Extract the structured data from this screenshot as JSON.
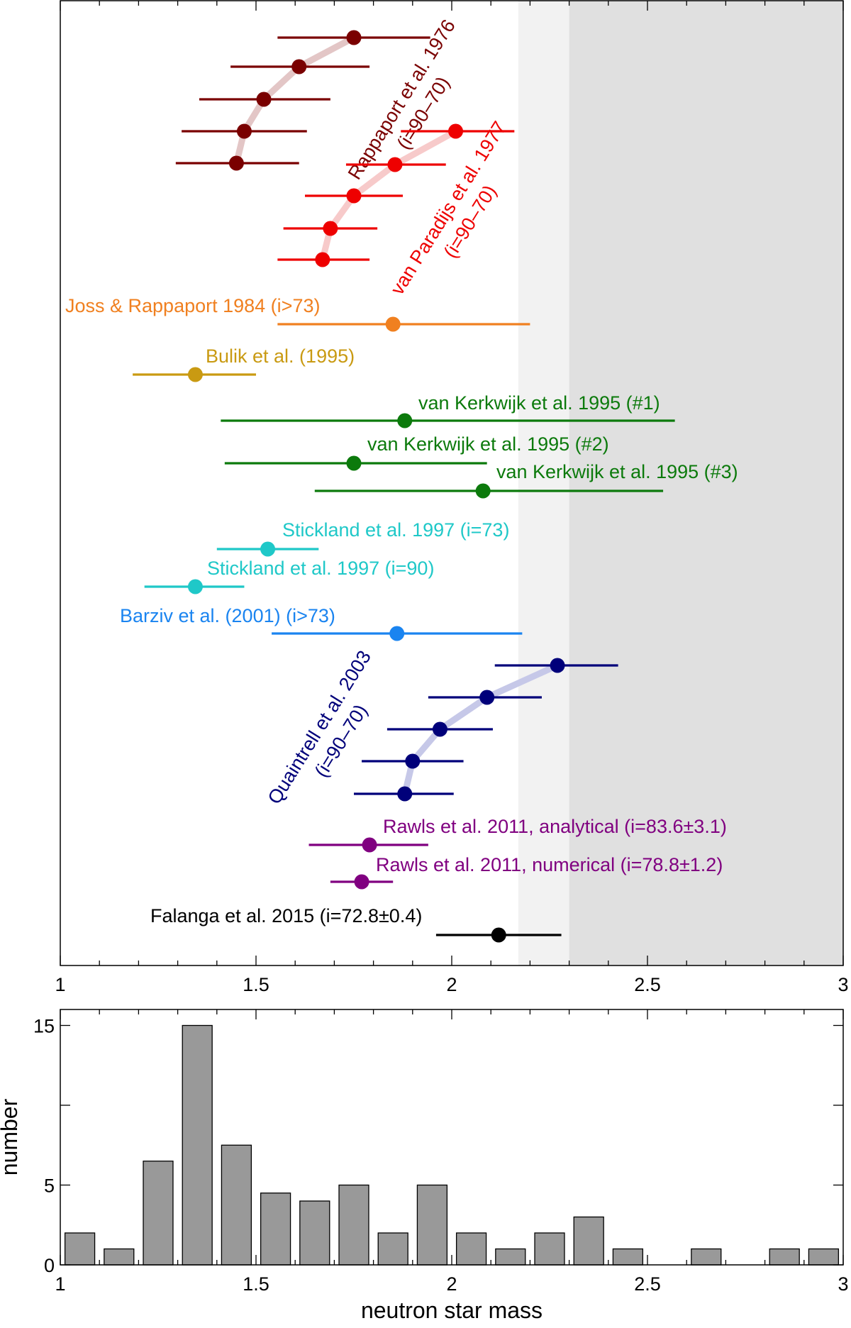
{
  "chart_data": [
    {
      "type": "scatter",
      "subtype": "error-bar",
      "title": "",
      "xlabel": "",
      "ylabel": "",
      "xlim": [
        1,
        3
      ],
      "xticks": [
        1,
        1.5,
        2,
        2.5,
        3
      ],
      "xtick_labels": [
        "1",
        "1.5",
        "2",
        "2.5",
        "3"
      ],
      "shaded_regions": [
        {
          "from": 2.17,
          "to": 2.3,
          "color": "#f2f2f2"
        },
        {
          "from": 2.3,
          "to": 3.0,
          "color": "#e0e0e0"
        }
      ],
      "groups": [
        {
          "label": "Rappaport et al. 1976\n(i=90–70)",
          "color": "#7a0000",
          "trend_color": "#e3c6c6",
          "points": [
            {
              "x": 1.75,
              "lo": 1.555,
              "hi": 1.945
            },
            {
              "x": 1.61,
              "lo": 1.435,
              "hi": 1.79
            },
            {
              "x": 1.52,
              "lo": 1.355,
              "hi": 1.69
            },
            {
              "x": 1.47,
              "lo": 1.31,
              "hi": 1.63
            },
            {
              "x": 1.45,
              "lo": 1.295,
              "hi": 1.61
            }
          ]
        },
        {
          "label": "van Paradijs et al. 1977\n(i=90–70)",
          "color": "#ee0000",
          "trend_color": "#f7caca",
          "points": [
            {
              "x": 2.01,
              "lo": 1.87,
              "hi": 2.16
            },
            {
              "x": 1.855,
              "lo": 1.73,
              "hi": 1.985
            },
            {
              "x": 1.75,
              "lo": 1.625,
              "hi": 1.875
            },
            {
              "x": 1.69,
              "lo": 1.57,
              "hi": 1.81
            },
            {
              "x": 1.67,
              "lo": 1.555,
              "hi": 1.79
            }
          ]
        },
        {
          "label": "Joss & Rappaport 1984 (i>73)",
          "color": "#f08020",
          "points": [
            {
              "x": 1.85,
              "lo": 1.555,
              "hi": 2.2
            }
          ]
        },
        {
          "label": "Bulik et al. (1995)",
          "color": "#c99a12",
          "points": [
            {
              "x": 1.345,
              "lo": 1.185,
              "hi": 1.5
            }
          ]
        },
        {
          "label": "van Kerkwijk et al. 1995 (#1)",
          "color": "#0c7a0c",
          "points": [
            {
              "x": 1.88,
              "lo": 1.41,
              "hi": 2.57
            }
          ]
        },
        {
          "label": "van Kerkwijk et al. 1995 (#2)",
          "color": "#0c7a0c",
          "points": [
            {
              "x": 1.75,
              "lo": 1.42,
              "hi": 2.09
            }
          ]
        },
        {
          "label": "van Kerkwijk et al. 1995 (#3)",
          "color": "#0c7a0c",
          "points": [
            {
              "x": 2.08,
              "lo": 1.65,
              "hi": 2.54
            }
          ]
        },
        {
          "label": "Stickland et al. 1997 (i=73)",
          "color": "#1fc8c8",
          "points": [
            {
              "x": 1.53,
              "lo": 1.4,
              "hi": 1.66
            }
          ]
        },
        {
          "label": "Stickland et al. 1997 (i=90)",
          "color": "#1fc8c8",
          "points": [
            {
              "x": 1.345,
              "lo": 1.215,
              "hi": 1.47
            }
          ]
        },
        {
          "label": "Barziv et al. (2001) (i>73)",
          "color": "#1a84f0",
          "points": [
            {
              "x": 1.86,
              "lo": 1.54,
              "hi": 2.18
            }
          ]
        },
        {
          "label": "Quaintrell et al. 2003\n(i=90–70)",
          "color": "#00007a",
          "trend_color": "#c6c8e8",
          "points": [
            {
              "x": 2.27,
              "lo": 2.11,
              "hi": 2.425
            },
            {
              "x": 2.09,
              "lo": 1.94,
              "hi": 2.23
            },
            {
              "x": 1.97,
              "lo": 1.835,
              "hi": 2.105
            },
            {
              "x": 1.9,
              "lo": 1.77,
              "hi": 2.03
            },
            {
              "x": 1.88,
              "lo": 1.75,
              "hi": 2.005
            }
          ]
        },
        {
          "label": "Rawls et al. 2011, analytical (i=83.6±3.1)",
          "color": "#800080",
          "points": [
            {
              "x": 1.79,
              "lo": 1.635,
              "hi": 1.94
            }
          ]
        },
        {
          "label": "Rawls et al. 2011, numerical  (i=78.8±1.2)",
          "color": "#800080",
          "points": [
            {
              "x": 1.77,
              "lo": 1.69,
              "hi": 1.85
            }
          ]
        },
        {
          "label": "Falanga et al. 2015 (i=72.8±0.4)",
          "color": "#000000",
          "points": [
            {
              "x": 2.12,
              "lo": 1.96,
              "hi": 2.28
            }
          ]
        }
      ]
    },
    {
      "type": "bar",
      "subtype": "histogram",
      "title": "",
      "xlabel": "neutron star mass",
      "ylabel": "number",
      "xlim": [
        1,
        3
      ],
      "ylim": [
        0,
        16
      ],
      "xticks": [
        1,
        1.5,
        2,
        2.5,
        3
      ],
      "xtick_labels": [
        "1",
        "1.5",
        "2",
        "2.5",
        "3"
      ],
      "yticks": [
        0,
        5,
        15
      ],
      "ytick_labels": [
        "0",
        "5",
        "15"
      ],
      "yminor_ticks": [
        10
      ],
      "bin_width": 0.1,
      "bar_color": "#999999",
      "bins": [
        1.0,
        1.1,
        1.2,
        1.3,
        1.4,
        1.5,
        1.6,
        1.7,
        1.8,
        1.9,
        2.0,
        2.1,
        2.2,
        2.3,
        2.4,
        2.5,
        2.6,
        2.7,
        2.8,
        2.9
      ],
      "values": [
        2,
        1,
        6.5,
        15,
        7.5,
        4.5,
        4,
        5,
        2,
        5,
        2,
        1,
        2,
        3,
        1,
        0,
        1,
        0,
        1,
        1
      ]
    }
  ]
}
